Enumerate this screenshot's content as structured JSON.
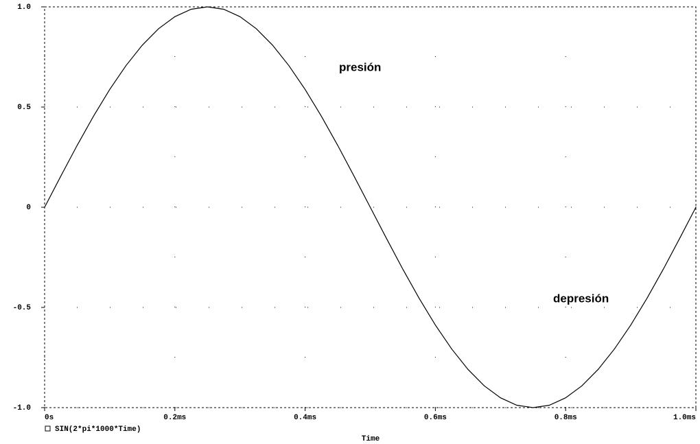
{
  "chart_data": {
    "type": "line",
    "x_label": "Time",
    "annotations": [
      "presión",
      "depresión"
    ],
    "x": [
      0,
      0.025,
      0.05,
      0.075,
      0.1,
      0.125,
      0.15,
      0.175,
      0.2,
      0.225,
      0.25,
      0.275,
      0.3,
      0.325,
      0.35,
      0.375,
      0.4,
      0.425,
      0.45,
      0.475,
      0.5,
      0.525,
      0.55,
      0.575,
      0.6,
      0.625,
      0.65,
      0.675,
      0.7,
      0.725,
      0.75,
      0.775,
      0.8,
      0.825,
      0.85,
      0.875,
      0.9,
      0.925,
      0.95,
      0.975,
      1
    ],
    "series": [
      {
        "name": "SIN(2*pi*1000*Time)",
        "color": "#000000",
        "values": [
          0,
          0.156,
          0.309,
          0.454,
          0.588,
          0.707,
          0.809,
          0.891,
          0.951,
          0.988,
          1,
          0.988,
          0.951,
          0.891,
          0.809,
          0.707,
          0.588,
          0.454,
          0.309,
          0.156,
          0,
          -0.156,
          -0.309,
          -0.454,
          -0.588,
          -0.707,
          -0.809,
          -0.891,
          -0.951,
          -0.988,
          -1,
          -0.988,
          -0.951,
          -0.891,
          -0.809,
          -0.707,
          -0.588,
          -0.454,
          -0.309,
          -0.156,
          0
        ]
      }
    ],
    "xlim": [
      0,
      1
    ],
    "xticks": [
      {
        "value": 0,
        "label": "0s"
      },
      {
        "value": 0.2,
        "label": "0.2ms"
      },
      {
        "value": 0.4,
        "label": "0.4ms"
      },
      {
        "value": 0.6,
        "label": "0.6ms"
      },
      {
        "value": 0.8,
        "label": "0.8ms"
      },
      {
        "value": 1,
        "label": "1.0ms"
      }
    ],
    "ylim": [
      -1,
      1
    ],
    "yticks": [
      {
        "value": -1,
        "label": "-1.0"
      },
      -0.5,
      0,
      0.5,
      {
        "value": 1,
        "label": "1.0"
      }
    ],
    "grid": true
  }
}
